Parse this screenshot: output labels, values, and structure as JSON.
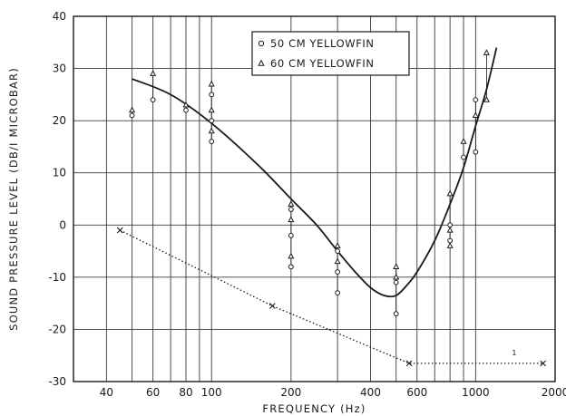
{
  "chart_data": {
    "type": "scatter",
    "xlabel": "FREQUENCY (Hz)",
    "ylabel": "SOUND PRESSURE LEVEL (DB/I MICROBAR)",
    "xscale": "log",
    "xlim": [
      30,
      2000
    ],
    "ylim": [
      -30,
      40
    ],
    "x_ticks": [
      "40",
      "60",
      "80",
      "100",
      "200",
      "400",
      "600",
      "1000",
      "2000"
    ],
    "x_tick_values": [
      40,
      60,
      80,
      100,
      200,
      400,
      600,
      1000,
      2000
    ],
    "y_ticks": [
      "40",
      "30",
      "20",
      "10",
      "0",
      "-10",
      "-20",
      "-30"
    ],
    "y_tick_values": [
      40,
      30,
      20,
      10,
      0,
      -10,
      -20,
      -30
    ],
    "grid": true,
    "legend_placement": "top-center",
    "series": [
      {
        "name": "50 CM YELLOWFIN",
        "marker": "circle",
        "points": [
          [
            50,
            21
          ],
          [
            60,
            24
          ],
          [
            80,
            22
          ],
          [
            100,
            25
          ],
          [
            100,
            20
          ],
          [
            100,
            16
          ],
          [
            200,
            3
          ],
          [
            200,
            -2
          ],
          [
            200,
            -8
          ],
          [
            300,
            -5
          ],
          [
            300,
            -9
          ],
          [
            300,
            -13
          ],
          [
            500,
            -11
          ],
          [
            500,
            -17
          ],
          [
            800,
            0
          ],
          [
            800,
            -3
          ],
          [
            900,
            13
          ],
          [
            1000,
            14
          ],
          [
            1000,
            24
          ]
        ]
      },
      {
        "name": "60 CM YELLOWFIN",
        "marker": "triangle",
        "points": [
          [
            50,
            22
          ],
          [
            60,
            29
          ],
          [
            80,
            23
          ],
          [
            100,
            27
          ],
          [
            100,
            22
          ],
          [
            100,
            18
          ],
          [
            200,
            4
          ],
          [
            200,
            1
          ],
          [
            200,
            -6
          ],
          [
            300,
            -4
          ],
          [
            300,
            -7
          ],
          [
            500,
            -8
          ],
          [
            500,
            -10
          ],
          [
            800,
            6
          ],
          [
            800,
            -1
          ],
          [
            800,
            -4
          ],
          [
            900,
            16
          ],
          [
            1000,
            21
          ],
          [
            1100,
            24
          ],
          [
            1100,
            33
          ]
        ]
      },
      {
        "style": "solid-curve",
        "x": [
          50,
          70,
          100,
          150,
          200,
          250,
          300,
          350,
          400,
          450,
          500,
          550,
          600,
          700,
          800,
          900,
          1000,
          1100,
          1200
        ],
        "y": [
          28,
          25,
          19.5,
          11.5,
          5,
          0,
          -5,
          -9,
          -12,
          -13.5,
          -13.5,
          -11.5,
          -9,
          -3,
          4,
          11,
          19,
          26,
          34
        ]
      },
      {
        "style": "dotted-line",
        "marker": "x",
        "x": [
          45,
          170,
          560,
          1800
        ],
        "y": [
          -1,
          -15.5,
          -26.5,
          -26.5
        ]
      }
    ],
    "annotations": [
      {
        "text": "1",
        "x": 1400,
        "y": -25
      }
    ]
  },
  "colors": {
    "ink": "#1a1a1a",
    "grid": "#3a3a3a",
    "background": "#ffffff"
  }
}
